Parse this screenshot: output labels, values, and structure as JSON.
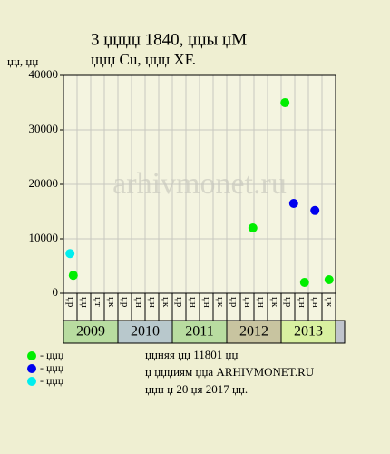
{
  "chart_data": {
    "type": "scatter",
    "title": "3 џџџџ 1840, џџы џМ",
    "subtitle": "џџџ Cu, џџџ XF.",
    "y_label": "џџ, џџ",
    "ylim": [
      0,
      40000
    ],
    "yticks": [
      0,
      10000,
      20000,
      30000,
      40000
    ],
    "xlim": [
      2009,
      2014
    ],
    "years": [
      "2009",
      "2010",
      "2011",
      "2012",
      "2013"
    ],
    "year_colors": [
      "#b8dca0",
      "#b8c8cc",
      "#b8dca0",
      "#c8c4a0",
      "#d8f0a0"
    ],
    "period_labels": [
      "џр",
      "џџ",
      "џт",
      "џк",
      "џр",
      "џн",
      "џн",
      "џк",
      "џр",
      "џн",
      "џн",
      "џк",
      "џр",
      "џн",
      "џн",
      "џк",
      "џр",
      "џн",
      "џн",
      "џк"
    ],
    "grid": true,
    "series": [
      {
        "name": "- џџџ",
        "color": "#00ee00",
        "x": [
          2009.18,
          2012.48,
          2013.07,
          2013.43,
          2013.88
        ],
        "values": [
          3300,
          12000,
          35000,
          2000,
          2500
        ]
      },
      {
        "name": "- џџџ",
        "color": "#0000ee",
        "x": [
          2013.23,
          2013.62
        ],
        "values": [
          16500,
          15200
        ]
      },
      {
        "name": "- џџџ",
        "color": "#00eeee",
        "x": [
          2009.12
        ],
        "values": [
          7300
        ]
      }
    ],
    "notes": [
      "џџняя џџ 11801 џџ",
      "џ џџџиям џџа ARHIVMONET.RU",
      "џџџ џ 20 џя 2017 џџ."
    ],
    "watermark": "arhivmonet.ru"
  }
}
